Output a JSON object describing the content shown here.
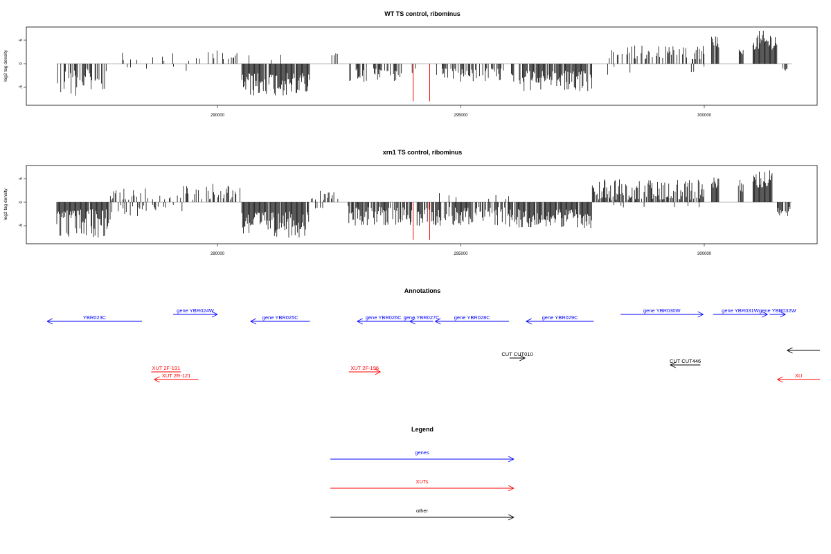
{
  "chart_data": [
    {
      "type": "bar",
      "title": "WT TS control, ribominus",
      "ylabel": "log2 tag density",
      "xlim": [
        286600,
        302800
      ],
      "ylim": [
        -8,
        7.5
      ],
      "yticks": [
        -5,
        0,
        5
      ],
      "xticks": [
        290000,
        295000,
        300000
      ],
      "tracks": [
        {
          "start": 286700,
          "end": 287800,
          "sign": -1,
          "min": 1,
          "max": 7,
          "density": 0.55,
          "color": "#000000"
        },
        {
          "start": 288050,
          "end": 289600,
          "sign": 1,
          "min": 0.5,
          "max": 2.5,
          "density": 0.12,
          "color": "#000000"
        },
        {
          "start": 288050,
          "end": 289600,
          "sign": -1,
          "min": 0.5,
          "max": 1.5,
          "density": 0.05,
          "color": "#000000"
        },
        {
          "start": 289500,
          "end": 290400,
          "sign": 1,
          "min": 1,
          "max": 3,
          "density": 0.25,
          "color": "#000000"
        },
        {
          "start": 290500,
          "end": 291900,
          "sign": -1,
          "min": 2,
          "max": 7,
          "density": 0.95,
          "color": "#000000"
        },
        {
          "start": 290500,
          "end": 291900,
          "sign": 1,
          "min": 0.5,
          "max": 2,
          "density": 0.04,
          "color": "#000000"
        },
        {
          "start": 292300,
          "end": 292600,
          "sign": 1,
          "min": 1,
          "max": 3,
          "density": 0.3,
          "color": "#000000"
        },
        {
          "start": 292700,
          "end": 293800,
          "sign": -1,
          "min": 1,
          "max": 4,
          "density": 0.5,
          "color": "#000000"
        },
        {
          "start": 294000,
          "end": 294100,
          "sign": -1,
          "min": 1,
          "max": 3,
          "density": 0.3,
          "color": "#000000"
        },
        {
          "start": 294500,
          "end": 296100,
          "sign": -1,
          "min": 1,
          "max": 4,
          "density": 0.45,
          "color": "#000000"
        },
        {
          "start": 296200,
          "end": 297700,
          "sign": -1,
          "min": 1.5,
          "max": 6,
          "density": 0.85,
          "color": "#000000"
        },
        {
          "start": 298000,
          "end": 300000,
          "sign": 1,
          "min": 1,
          "max": 4,
          "density": 0.35,
          "color": "#000000"
        },
        {
          "start": 298000,
          "end": 300000,
          "sign": -1,
          "min": 0.5,
          "max": 2.5,
          "density": 0.04,
          "color": "#000000"
        },
        {
          "start": 300150,
          "end": 300300,
          "sign": 1,
          "min": 3,
          "max": 7,
          "density": 0.9,
          "color": "#000000"
        },
        {
          "start": 300700,
          "end": 300800,
          "sign": 1,
          "min": 2,
          "max": 3,
          "density": 0.9,
          "color": "#000000"
        },
        {
          "start": 301000,
          "end": 301500,
          "sign": 1,
          "min": 3,
          "max": 7,
          "density": 1.0,
          "color": "#000000"
        },
        {
          "start": 301600,
          "end": 301700,
          "sign": -1,
          "min": 0.5,
          "max": 1.5,
          "density": 0.4,
          "color": "#000000"
        }
      ],
      "spikes": [
        {
          "x": 294020,
          "y": -8,
          "color": "#ff0000"
        },
        {
          "x": 294360,
          "y": -8,
          "color": "#ff0000"
        }
      ]
    },
    {
      "type": "bar",
      "title": "xrn1 TS control, ribominus",
      "ylabel": "log2 tag density",
      "xlim": [
        286600,
        302800
      ],
      "ylim": [
        -8,
        7.5
      ],
      "yticks": [
        -5,
        0,
        5
      ],
      "xticks": [
        290000,
        295000,
        300000
      ],
      "tracks": [
        {
          "start": 286700,
          "end": 287800,
          "sign": -1,
          "min": 1.5,
          "max": 7.5,
          "density": 0.95,
          "color": "#000000"
        },
        {
          "start": 287800,
          "end": 288700,
          "sign": 1,
          "min": 0.5,
          "max": 3,
          "density": 0.3,
          "color": "#000000"
        },
        {
          "start": 287800,
          "end": 289300,
          "sign": -1,
          "min": 0.5,
          "max": 3,
          "density": 0.25,
          "color": "#000000"
        },
        {
          "start": 288800,
          "end": 289300,
          "sign": 1,
          "min": 0.5,
          "max": 3,
          "density": 0.3,
          "color": "#000000"
        },
        {
          "start": 289300,
          "end": 290500,
          "sign": 1,
          "min": 0.5,
          "max": 4,
          "density": 0.35,
          "color": "#000000"
        },
        {
          "start": 290500,
          "end": 291900,
          "sign": -1,
          "min": 2,
          "max": 7.5,
          "density": 0.95,
          "color": "#000000"
        },
        {
          "start": 291900,
          "end": 292600,
          "sign": 1,
          "min": 0.5,
          "max": 2.5,
          "density": 0.25,
          "color": "#000000"
        },
        {
          "start": 291900,
          "end": 292700,
          "sign": -1,
          "min": 0.5,
          "max": 1.5,
          "density": 0.1,
          "color": "#000000"
        },
        {
          "start": 292700,
          "end": 294000,
          "sign": -1,
          "min": 1,
          "max": 5,
          "density": 0.8,
          "color": "#000000"
        },
        {
          "start": 294100,
          "end": 296000,
          "sign": -1,
          "min": 1,
          "max": 5,
          "density": 0.8,
          "color": "#000000"
        },
        {
          "start": 294100,
          "end": 296000,
          "sign": 1,
          "min": 0.5,
          "max": 2,
          "density": 0.05,
          "color": "#000000"
        },
        {
          "start": 296000,
          "end": 297700,
          "sign": -1,
          "min": 1.5,
          "max": 5.5,
          "density": 0.95,
          "color": "#000000"
        },
        {
          "start": 297700,
          "end": 300000,
          "sign": 1,
          "min": 0.5,
          "max": 5,
          "density": 0.75,
          "color": "#000000"
        },
        {
          "start": 297700,
          "end": 300000,
          "sign": -1,
          "min": 0.5,
          "max": 1.5,
          "density": 0.05,
          "color": "#000000"
        },
        {
          "start": 300150,
          "end": 300300,
          "sign": 1,
          "min": 3,
          "max": 5.5,
          "density": 0.9,
          "color": "#000000"
        },
        {
          "start": 300700,
          "end": 300800,
          "sign": 1,
          "min": 2,
          "max": 5,
          "density": 0.9,
          "color": "#000000"
        },
        {
          "start": 301000,
          "end": 301400,
          "sign": 1,
          "min": 3,
          "max": 7,
          "density": 1.0,
          "color": "#000000"
        },
        {
          "start": 301500,
          "end": 301800,
          "sign": -1,
          "min": 1,
          "max": 3,
          "density": 0.8,
          "color": "#000000"
        }
      ],
      "spikes": [
        {
          "x": 294020,
          "y": -8,
          "color": "#ff0000"
        },
        {
          "x": 294360,
          "y": -8,
          "color": "#ff0000"
        }
      ]
    }
  ],
  "annotations": {
    "title": "Annotations",
    "features": [
      {
        "label": "YBR023C",
        "color": "#0000ff",
        "row": 1,
        "start": 286500,
        "end": 288450,
        "dir": "left"
      },
      {
        "label": "gene YBR024W",
        "color": "#0000ff",
        "row": 0,
        "start": 289090,
        "end": 290000,
        "dir": "right"
      },
      {
        "label": "gene YBR025C",
        "color": "#0000ff",
        "row": 1,
        "start": 290680,
        "end": 291900,
        "dir": "left"
      },
      {
        "label": "gene YBR026C",
        "color": "#0000ff",
        "row": 1,
        "start": 292870,
        "end": 293950,
        "dir": "left"
      },
      {
        "label": "gene YBR027C",
        "color": "#0000ff",
        "row": 1,
        "start": 293950,
        "end": 294430,
        "dir": "left"
      },
      {
        "label": "gene YBR028C",
        "color": "#0000ff",
        "row": 1,
        "start": 294470,
        "end": 295990,
        "dir": "left"
      },
      {
        "label": "gene YBR029C",
        "color": "#0000ff",
        "row": 1,
        "start": 296340,
        "end": 297730,
        "dir": "left"
      },
      {
        "label": "gene YBR030W",
        "color": "#0000ff",
        "row": 0,
        "start": 298280,
        "end": 299980,
        "dir": "right"
      },
      {
        "label": "gene YBR031W",
        "color": "#0000ff",
        "row": 0,
        "start": 300180,
        "end": 301300,
        "dir": "right"
      },
      {
        "label": "gene YBR032W",
        "color": "#0000ff",
        "row": 0,
        "start": 301340,
        "end": 301670,
        "dir": "right"
      },
      {
        "label": "CUT CUT010",
        "color": "#000000",
        "row": 4,
        "start": 296000,
        "end": 296320,
        "dir": "right"
      },
      {
        "label": "CUT CUT446",
        "color": "#000000",
        "row": 5,
        "start": 299300,
        "end": 299920,
        "dir": "left"
      },
      {
        "label": "",
        "color": "#000000",
        "row": 3,
        "start": 301700,
        "end": 302800,
        "dir": "left"
      },
      {
        "label": "XUT 2F-191",
        "color": "#ff0000",
        "row": 6,
        "start": 288640,
        "end": 289250,
        "dir": "none"
      },
      {
        "label": "XUT 2R-121",
        "color": "#ff0000",
        "row": 7,
        "start": 288700,
        "end": 289610,
        "dir": "left"
      },
      {
        "label": "XUT 2F-196",
        "color": "#ff0000",
        "row": 6,
        "start": 292700,
        "end": 293350,
        "dir": "right"
      },
      {
        "label": "XU",
        "color": "#ff0000",
        "row": 7,
        "start": 301500,
        "end": 302800,
        "dir": "left"
      }
    ]
  },
  "legend": {
    "title": "Legend",
    "items": [
      {
        "label": "genes",
        "color": "#0000ff"
      },
      {
        "label": "XUTs",
        "color": "#ff0000"
      },
      {
        "label": "other",
        "color": "#000000"
      }
    ]
  }
}
